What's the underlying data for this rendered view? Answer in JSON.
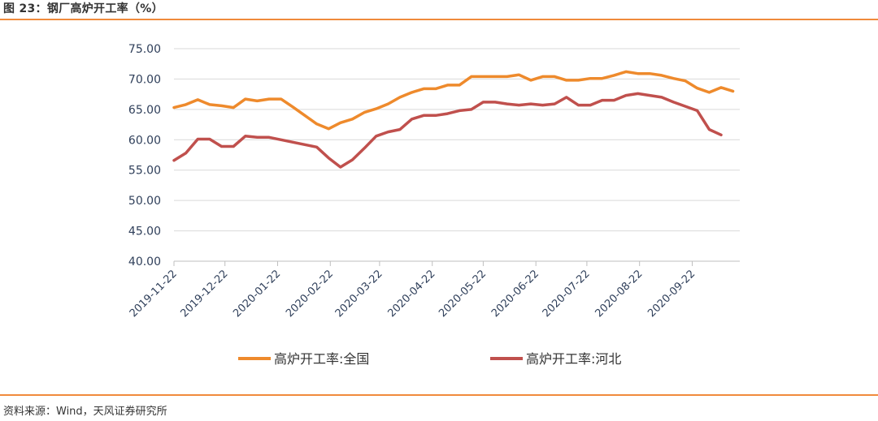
{
  "header": {
    "title": "图 23：钢厂高炉开工率（%）"
  },
  "footer": {
    "source": "资料来源：Wind，天风证券研究所"
  },
  "colors": {
    "accent": "#f08a3c",
    "national": "#ee8a2c",
    "hebei": "#c0504d",
    "grid": "#d9d9d9",
    "axis_text": "#2f3f5a"
  },
  "chart_data": {
    "type": "line",
    "title": "",
    "xlabel": "",
    "ylabel": "",
    "ylim": [
      40,
      75
    ],
    "yticks": [
      "40.00",
      "45.00",
      "50.00",
      "55.00",
      "60.00",
      "65.00",
      "70.00",
      "75.00"
    ],
    "xticks": [
      "2019-11-22",
      "2019-12-22",
      "2020-01-22",
      "2020-02-22",
      "2020-03-22",
      "2020-04-22",
      "2020-05-22",
      "2020-06-22",
      "2020-07-22",
      "2020-08-22",
      "2020-09-22"
    ],
    "xrange": [
      "2019-11-22",
      "2020-10-20"
    ],
    "grid": "horizontal",
    "legend_position": "bottom",
    "series": [
      {
        "name": "高炉开工率:全国",
        "color": "#ee8a2c",
        "points": [
          [
            "2019-11-22",
            65.3
          ],
          [
            "2019-11-29",
            65.8
          ],
          [
            "2019-12-06",
            66.6
          ],
          [
            "2019-12-13",
            65.8
          ],
          [
            "2019-12-20",
            65.6
          ],
          [
            "2019-12-27",
            65.3
          ],
          [
            "2020-01-03",
            66.7
          ],
          [
            "2020-01-10",
            66.4
          ],
          [
            "2020-01-17",
            66.7
          ],
          [
            "2020-01-24",
            66.7
          ],
          [
            "2020-01-31",
            65.4
          ],
          [
            "2020-02-07",
            64.0
          ],
          [
            "2020-02-14",
            62.6
          ],
          [
            "2020-02-21",
            61.8
          ],
          [
            "2020-02-28",
            62.8
          ],
          [
            "2020-03-06",
            63.4
          ],
          [
            "2020-03-13",
            64.5
          ],
          [
            "2020-03-20",
            65.1
          ],
          [
            "2020-03-27",
            65.9
          ],
          [
            "2020-04-03",
            67.0
          ],
          [
            "2020-04-10",
            67.8
          ],
          [
            "2020-04-17",
            68.4
          ],
          [
            "2020-04-24",
            68.4
          ],
          [
            "2020-05-01",
            69.0
          ],
          [
            "2020-05-08",
            69.0
          ],
          [
            "2020-05-15",
            70.4
          ],
          [
            "2020-05-22",
            70.4
          ],
          [
            "2020-05-29",
            70.4
          ],
          [
            "2020-06-05",
            70.4
          ],
          [
            "2020-06-12",
            70.7
          ],
          [
            "2020-06-19",
            69.8
          ],
          [
            "2020-06-26",
            70.4
          ],
          [
            "2020-07-03",
            70.4
          ],
          [
            "2020-07-10",
            69.8
          ],
          [
            "2020-07-17",
            69.8
          ],
          [
            "2020-07-24",
            70.1
          ],
          [
            "2020-07-31",
            70.1
          ],
          [
            "2020-08-07",
            70.6
          ],
          [
            "2020-08-14",
            71.2
          ],
          [
            "2020-08-21",
            70.9
          ],
          [
            "2020-08-28",
            70.9
          ],
          [
            "2020-09-04",
            70.6
          ],
          [
            "2020-09-11",
            70.1
          ],
          [
            "2020-09-18",
            69.7
          ],
          [
            "2020-09-25",
            68.5
          ],
          [
            "2020-10-02",
            67.8
          ],
          [
            "2020-10-09",
            68.6
          ],
          [
            "2020-10-16",
            68.0
          ]
        ]
      },
      {
        "name": "高炉开工率:河北",
        "color": "#c0504d",
        "points": [
          [
            "2019-11-22",
            56.6
          ],
          [
            "2019-11-29",
            57.8
          ],
          [
            "2019-12-06",
            60.1
          ],
          [
            "2019-12-13",
            60.1
          ],
          [
            "2019-12-20",
            58.9
          ],
          [
            "2019-12-27",
            58.9
          ],
          [
            "2020-01-03",
            60.6
          ],
          [
            "2020-01-10",
            60.4
          ],
          [
            "2020-01-17",
            60.4
          ],
          [
            "2020-01-24",
            60.0
          ],
          [
            "2020-01-31",
            59.6
          ],
          [
            "2020-02-07",
            59.2
          ],
          [
            "2020-02-14",
            58.8
          ],
          [
            "2020-02-21",
            57.0
          ],
          [
            "2020-02-28",
            55.5
          ],
          [
            "2020-03-06",
            56.7
          ],
          [
            "2020-03-13",
            58.6
          ],
          [
            "2020-03-20",
            60.6
          ],
          [
            "2020-03-27",
            61.3
          ],
          [
            "2020-04-03",
            61.7
          ],
          [
            "2020-04-10",
            63.4
          ],
          [
            "2020-04-17",
            64.0
          ],
          [
            "2020-04-24",
            64.0
          ],
          [
            "2020-05-01",
            64.3
          ],
          [
            "2020-05-08",
            64.8
          ],
          [
            "2020-05-15",
            65.0
          ],
          [
            "2020-05-22",
            66.2
          ],
          [
            "2020-05-29",
            66.2
          ],
          [
            "2020-06-05",
            65.9
          ],
          [
            "2020-06-12",
            65.7
          ],
          [
            "2020-06-19",
            65.9
          ],
          [
            "2020-06-26",
            65.7
          ],
          [
            "2020-07-03",
            65.9
          ],
          [
            "2020-07-10",
            67.0
          ],
          [
            "2020-07-17",
            65.7
          ],
          [
            "2020-07-24",
            65.7
          ],
          [
            "2020-07-31",
            66.5
          ],
          [
            "2020-08-07",
            66.5
          ],
          [
            "2020-08-14",
            67.3
          ],
          [
            "2020-08-21",
            67.6
          ],
          [
            "2020-08-28",
            67.3
          ],
          [
            "2020-09-04",
            67.0
          ],
          [
            "2020-09-11",
            66.2
          ],
          [
            "2020-09-18",
            65.5
          ],
          [
            "2020-09-25",
            64.8
          ],
          [
            "2020-10-02",
            61.7
          ],
          [
            "2020-10-09",
            60.8
          ]
        ]
      }
    ]
  }
}
